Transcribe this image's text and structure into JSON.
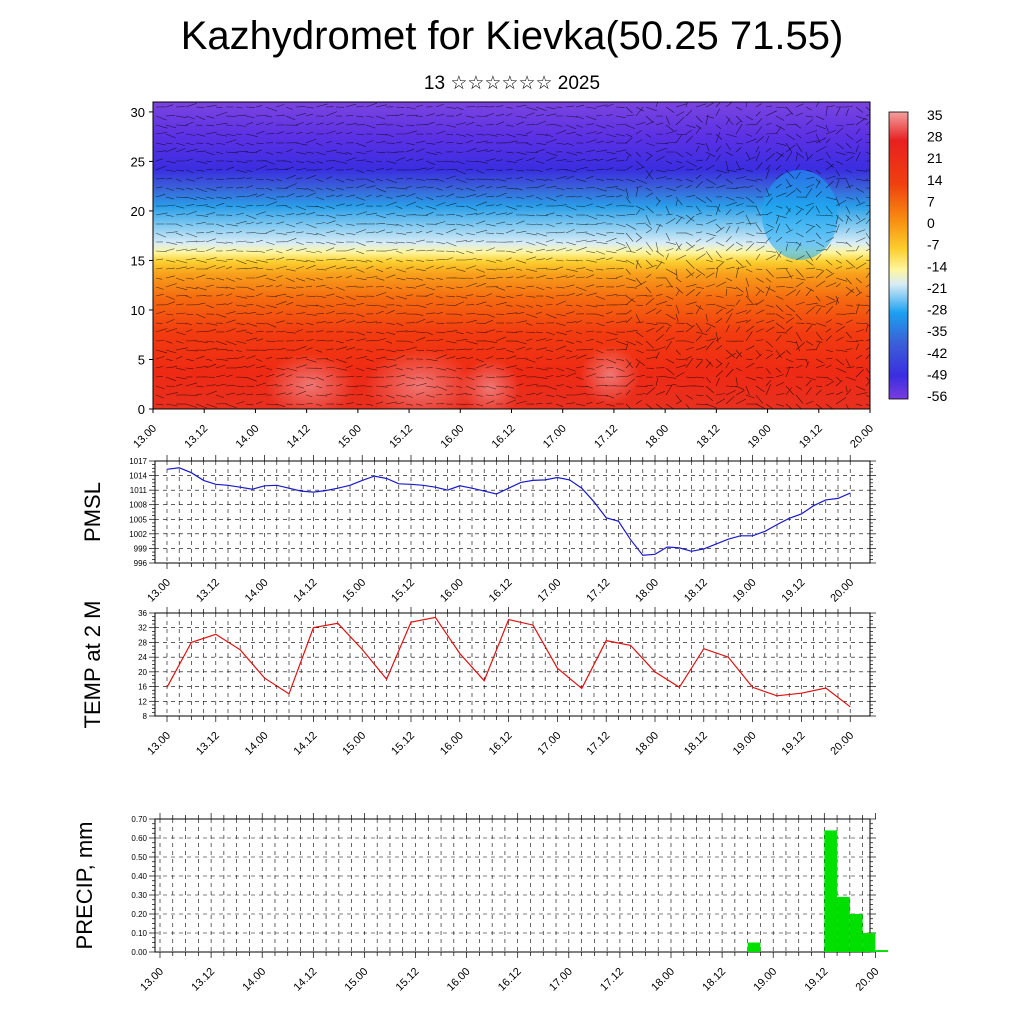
{
  "title": "Kazhydromet for Kievka(50.25 71.55)",
  "subtitle": "13 ☆☆☆☆☆☆ 2025",
  "colorbar": {
    "labels": [
      "35",
      "28",
      "21",
      "14",
      "7",
      "0",
      "-7",
      "-14",
      "-21",
      "-28",
      "-35",
      "-42",
      "-49",
      "-56"
    ]
  },
  "chart_data": [
    {
      "type": "heatmap",
      "title": "",
      "xlabel": "",
      "ylabel": "",
      "x_tick_labels": [
        "13.00",
        "13.12",
        "14.00",
        "14.12",
        "15.00",
        "15.12",
        "16.00",
        "16.12",
        "17.00",
        "17.12",
        "18.00",
        "18.12",
        "19.00",
        "19.12",
        "20.00"
      ],
      "y_ticks": [
        0,
        5,
        10,
        15,
        20,
        25,
        30
      ],
      "ylim": [
        0,
        31
      ],
      "value_range": [
        -56,
        35
      ],
      "overlay": "wind vectors"
    },
    {
      "type": "line",
      "ylabel": "PMSL",
      "ylim": [
        996,
        1017
      ],
      "y_ticks": [
        996,
        999,
        1002,
        1005,
        1008,
        1011,
        1014,
        1017
      ],
      "x_tick_labels": [
        "13.00",
        "13.12",
        "14.00",
        "14.12",
        "15.00",
        "15.12",
        "16.00",
        "16.12",
        "17.00",
        "17.12",
        "18.00",
        "18.12",
        "19.00",
        "19.12",
        "20.00"
      ],
      "color": "#1a1acc",
      "x": [
        0,
        1,
        2,
        3,
        4,
        5,
        6,
        7,
        8,
        9,
        10,
        11,
        12,
        13,
        14,
        15,
        16,
        17,
        18,
        19,
        20,
        21,
        22,
        23,
        24,
        25,
        26,
        27,
        28,
        29,
        30,
        31,
        32,
        33,
        34,
        35,
        36,
        37,
        38,
        39,
        40,
        41,
        42,
        43,
        44,
        45,
        46,
        47,
        48,
        49,
        50,
        51,
        52,
        53,
        54,
        55,
        56
      ],
      "values": [
        1015.3,
        1015.6,
        1014.6,
        1013.0,
        1012.2,
        1012.0,
        1011.6,
        1011.2,
        1011.9,
        1012.0,
        1011.4,
        1010.8,
        1010.6,
        1010.9,
        1011.4,
        1012.0,
        1013.0,
        1013.9,
        1013.4,
        1012.3,
        1012.2,
        1012.0,
        1011.6,
        1011.0,
        1011.9,
        1011.4,
        1010.8,
        1010.2,
        1011.4,
        1012.6,
        1013.0,
        1013.1,
        1013.6,
        1013.1,
        1011.4,
        1008.6,
        1005.3,
        1004.6,
        1000.8,
        997.6,
        997.8,
        999.3,
        999.1,
        998.4,
        998.9,
        999.9,
        1000.9,
        1001.6,
        1001.6,
        1002.5,
        1003.9,
        1005.2,
        1006.1,
        1007.8,
        1009.0,
        1009.3,
        1010.4
      ]
    },
    {
      "type": "line",
      "ylabel": "TEMP at 2 M",
      "ylim": [
        8,
        36
      ],
      "y_ticks": [
        8,
        12,
        16,
        20,
        24,
        28,
        32,
        36
      ],
      "x_tick_labels": [
        "13.00",
        "13.12",
        "14.00",
        "14.12",
        "15.00",
        "15.12",
        "16.00",
        "16.12",
        "17.00",
        "17.12",
        "18.00",
        "18.12",
        "19.00",
        "19.12",
        "20.00"
      ],
      "color": "#e01010",
      "x": [
        0,
        2,
        4,
        6,
        8,
        10,
        12,
        14,
        16,
        18,
        20,
        22,
        24,
        26,
        28,
        30,
        32,
        34,
        36,
        38,
        40,
        42,
        44,
        46,
        48,
        50,
        52,
        54,
        56
      ],
      "values": [
        15.8,
        28.0,
        30.2,
        26.0,
        18.3,
        14.0,
        32.0,
        33.2,
        26.1,
        18.0,
        33.5,
        34.8,
        25.0,
        17.6,
        34.2,
        32.7,
        21.0,
        15.5,
        28.5,
        27.2,
        20.0,
        15.8,
        26.3,
        24.0,
        15.8,
        13.5,
        14.2,
        15.6,
        10.5
      ]
    },
    {
      "type": "bar",
      "ylabel": "PRECIP, mm",
      "ylim": [
        0,
        0.7
      ],
      "y_ticks": [
        "0.00",
        "0.10",
        "0.20",
        "0.30",
        "0.40",
        "0.50",
        "0.60",
        "0.70"
      ],
      "x_tick_labels": [
        "13.00",
        "13.12",
        "14.00",
        "14.12",
        "15.00",
        "15.12",
        "16.00",
        "16.12",
        "17.00",
        "17.12",
        "18.00",
        "18.12",
        "19.00",
        "19.12",
        "20.00"
      ],
      "color": "#00e000",
      "bars": [
        {
          "x": 46,
          "value": 0.05
        },
        {
          "x": 52,
          "value": 0.64
        },
        {
          "x": 53,
          "value": 0.29
        },
        {
          "x": 54,
          "value": 0.2
        },
        {
          "x": 55,
          "value": 0.1
        },
        {
          "x": 56,
          "value": 0.01
        }
      ]
    }
  ]
}
